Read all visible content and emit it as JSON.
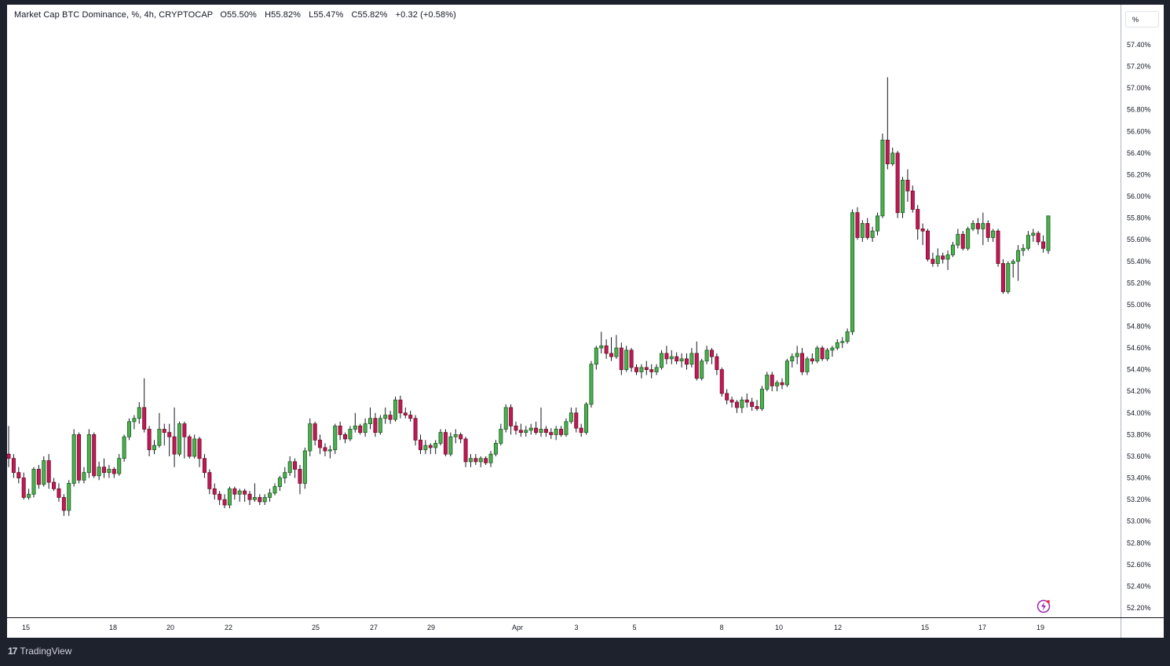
{
  "legend": {
    "symbol": "Market Cap BTC Dominance, %, 4h, CRYPTOCAP",
    "open": "O55.50%",
    "high": "H55.82%",
    "low": "L55.47%",
    "close": "C55.82%",
    "change": "+0.32 (+0.58%)"
  },
  "price_axis_unit": "%",
  "brand": {
    "name": "TradingView",
    "logo_text": "17"
  },
  "colors": {
    "up": "#4caf50",
    "down": "#c2185b",
    "up_fill": "#2e7d32",
    "down_fill": "#8b1a2b",
    "wick": "#131722"
  },
  "chart_data": {
    "type": "candlestick",
    "title": "Market Cap BTC Dominance, %, 4h, CRYPTOCAP",
    "ylabel": "%",
    "ylim": [
      52.1,
      57.7
    ],
    "yticks": [
      "52.20%",
      "52.40%",
      "52.60%",
      "52.80%",
      "53.00%",
      "53.20%",
      "53.40%",
      "53.60%",
      "53.80%",
      "54.00%",
      "54.20%",
      "54.40%",
      "54.60%",
      "54.80%",
      "55.00%",
      "55.20%",
      "55.40%",
      "55.60%",
      "55.80%",
      "56.00%",
      "56.20%",
      "56.40%",
      "56.60%",
      "56.80%",
      "57.00%",
      "57.20%",
      "57.40%"
    ],
    "xticks": [
      "15",
      "18",
      "20",
      "22",
      "25",
      "27",
      "29",
      "Apr",
      "3",
      "5",
      "8",
      "10",
      "12",
      "15",
      "17",
      "19"
    ],
    "grid": false,
    "candles": [
      [
        53.62,
        53.88,
        53.5,
        53.58
      ],
      [
        53.58,
        53.62,
        53.4,
        53.45
      ],
      [
        53.45,
        53.5,
        53.35,
        53.4
      ],
      [
        53.4,
        53.45,
        53.2,
        53.22
      ],
      [
        53.22,
        53.3,
        53.2,
        53.25
      ],
      [
        53.25,
        53.5,
        53.22,
        53.48
      ],
      [
        53.48,
        53.52,
        53.3,
        53.34
      ],
      [
        53.34,
        53.6,
        53.32,
        53.56
      ],
      [
        53.56,
        53.62,
        53.3,
        53.36
      ],
      [
        53.36,
        53.4,
        53.28,
        53.3
      ],
      [
        53.3,
        53.35,
        53.18,
        53.22
      ],
      [
        53.22,
        53.25,
        53.05,
        53.1
      ],
      [
        53.1,
        53.38,
        53.05,
        53.35
      ],
      [
        53.35,
        53.85,
        53.32,
        53.8
      ],
      [
        53.8,
        53.82,
        53.35,
        53.38
      ],
      [
        53.38,
        53.5,
        53.35,
        53.45
      ],
      [
        53.45,
        53.85,
        53.4,
        53.8
      ],
      [
        53.8,
        53.82,
        53.4,
        53.42
      ],
      [
        53.42,
        53.55,
        53.38,
        53.5
      ],
      [
        53.5,
        53.58,
        53.4,
        53.45
      ],
      [
        53.45,
        53.52,
        53.4,
        53.48
      ],
      [
        53.48,
        53.5,
        53.4,
        53.44
      ],
      [
        53.44,
        53.62,
        53.42,
        53.58
      ],
      [
        53.58,
        53.8,
        53.55,
        53.78
      ],
      [
        53.78,
        53.95,
        53.75,
        53.92
      ],
      [
        53.92,
        53.98,
        53.85,
        53.95
      ],
      [
        53.95,
        54.1,
        53.9,
        54.05
      ],
      [
        54.05,
        54.32,
        53.82,
        53.85
      ],
      [
        53.85,
        53.88,
        53.6,
        53.66
      ],
      [
        53.66,
        53.75,
        53.62,
        53.7
      ],
      [
        53.7,
        54.0,
        53.68,
        53.85
      ],
      [
        53.85,
        53.9,
        53.7,
        53.82
      ],
      [
        53.82,
        53.9,
        53.6,
        53.78
      ],
      [
        53.78,
        54.05,
        53.5,
        53.62
      ],
      [
        53.62,
        53.92,
        53.6,
        53.9
      ],
      [
        53.9,
        53.92,
        53.58,
        53.78
      ],
      [
        53.78,
        53.8,
        53.58,
        53.6
      ],
      [
        53.6,
        53.8,
        53.58,
        53.76
      ],
      [
        53.76,
        53.78,
        53.5,
        53.58
      ],
      [
        53.58,
        53.62,
        53.4,
        53.45
      ],
      [
        53.45,
        53.48,
        53.25,
        53.3
      ],
      [
        53.3,
        53.35,
        53.2,
        53.25
      ],
      [
        53.25,
        53.28,
        53.15,
        53.2
      ],
      [
        53.2,
        53.25,
        53.12,
        53.15
      ],
      [
        53.15,
        53.32,
        53.12,
        53.3
      ],
      [
        53.3,
        53.32,
        53.2,
        53.25
      ],
      [
        53.25,
        53.3,
        53.18,
        53.28
      ],
      [
        53.28,
        53.3,
        53.18,
        53.25
      ],
      [
        53.25,
        53.28,
        53.15,
        53.2
      ],
      [
        53.2,
        53.35,
        53.18,
        53.22
      ],
      [
        53.22,
        53.25,
        53.15,
        53.18
      ],
      [
        53.18,
        53.25,
        53.15,
        53.22
      ],
      [
        53.22,
        53.3,
        53.18,
        53.26
      ],
      [
        53.26,
        53.35,
        53.24,
        53.32
      ],
      [
        53.32,
        53.42,
        53.28,
        53.4
      ],
      [
        53.4,
        53.5,
        53.35,
        53.45
      ],
      [
        53.45,
        53.6,
        53.42,
        53.55
      ],
      [
        53.55,
        53.58,
        53.4,
        53.48
      ],
      [
        53.48,
        53.52,
        53.25,
        53.35
      ],
      [
        53.35,
        53.68,
        53.3,
        53.65
      ],
      [
        53.65,
        53.95,
        53.6,
        53.9
      ],
      [
        53.9,
        53.92,
        53.7,
        53.75
      ],
      [
        53.75,
        53.8,
        53.62,
        53.68
      ],
      [
        53.68,
        53.72,
        53.6,
        53.65
      ],
      [
        53.65,
        53.7,
        53.58,
        53.66
      ],
      [
        53.66,
        53.9,
        53.62,
        53.88
      ],
      [
        53.88,
        53.92,
        53.75,
        53.8
      ],
      [
        53.8,
        53.82,
        53.72,
        53.76
      ],
      [
        53.76,
        53.88,
        53.74,
        53.85
      ],
      [
        53.85,
        54.0,
        53.82,
        53.88
      ],
      [
        53.88,
        53.9,
        53.8,
        53.82
      ],
      [
        53.82,
        53.95,
        53.78,
        53.9
      ],
      [
        53.9,
        54.05,
        53.85,
        53.95
      ],
      [
        53.95,
        54.0,
        53.78,
        53.82
      ],
      [
        53.82,
        53.98,
        53.8,
        53.95
      ],
      [
        53.95,
        54.05,
        53.9,
        53.98
      ],
      [
        53.98,
        54.02,
        53.9,
        53.94
      ],
      [
        53.94,
        54.15,
        53.92,
        54.12
      ],
      [
        54.12,
        54.16,
        53.95,
        54.0
      ],
      [
        54.0,
        54.05,
        53.95,
        53.98
      ],
      [
        53.98,
        54.02,
        53.92,
        53.95
      ],
      [
        53.95,
        53.98,
        53.7,
        53.75
      ],
      [
        53.75,
        53.8,
        53.62,
        53.66
      ],
      [
        53.66,
        53.75,
        53.62,
        53.7
      ],
      [
        53.7,
        53.72,
        53.62,
        53.68
      ],
      [
        53.68,
        53.75,
        53.62,
        53.72
      ],
      [
        53.72,
        53.85,
        53.7,
        53.82
      ],
      [
        53.82,
        53.85,
        53.6,
        53.62
      ],
      [
        53.62,
        53.82,
        53.6,
        53.78
      ],
      [
        53.78,
        53.85,
        53.72,
        53.8
      ],
      [
        53.8,
        53.82,
        53.72,
        53.76
      ],
      [
        53.76,
        53.78,
        53.5,
        53.55
      ],
      [
        53.55,
        53.62,
        53.5,
        53.58
      ],
      [
        53.58,
        53.62,
        53.52,
        53.55
      ],
      [
        53.55,
        53.6,
        53.5,
        53.58
      ],
      [
        53.58,
        53.6,
        53.52,
        53.54
      ],
      [
        53.54,
        53.65,
        53.5,
        53.62
      ],
      [
        53.62,
        53.75,
        53.6,
        53.72
      ],
      [
        53.72,
        53.9,
        53.7,
        53.85
      ],
      [
        53.85,
        54.08,
        53.82,
        54.05
      ],
      [
        54.05,
        54.08,
        53.8,
        53.88
      ],
      [
        53.88,
        53.92,
        53.8,
        53.84
      ],
      [
        53.84,
        53.9,
        53.78,
        53.82
      ],
      [
        53.82,
        53.88,
        53.78,
        53.84
      ],
      [
        53.84,
        53.9,
        53.8,
        53.86
      ],
      [
        53.86,
        53.92,
        53.8,
        53.82
      ],
      [
        53.82,
        54.05,
        53.78,
        53.85
      ],
      [
        53.85,
        53.88,
        53.78,
        53.82
      ],
      [
        53.82,
        53.86,
        53.76,
        53.8
      ],
      [
        53.8,
        53.88,
        53.75,
        53.85
      ],
      [
        53.85,
        53.88,
        53.78,
        53.8
      ],
      [
        53.8,
        53.95,
        53.78,
        53.92
      ],
      [
        53.92,
        54.05,
        53.9,
        54.0
      ],
      [
        54.0,
        54.05,
        53.82,
        53.86
      ],
      [
        53.86,
        53.9,
        53.78,
        53.82
      ],
      [
        53.82,
        54.1,
        53.8,
        54.08
      ],
      [
        54.08,
        54.48,
        54.05,
        54.45
      ],
      [
        54.45,
        54.62,
        54.4,
        54.6
      ],
      [
        54.6,
        54.75,
        54.55,
        54.62
      ],
      [
        54.62,
        54.68,
        54.5,
        54.55
      ],
      [
        54.55,
        54.7,
        54.48,
        54.52
      ],
      [
        54.52,
        54.72,
        54.5,
        54.6
      ],
      [
        54.6,
        54.65,
        54.35,
        54.4
      ],
      [
        54.4,
        54.62,
        54.38,
        54.58
      ],
      [
        54.58,
        54.6,
        54.38,
        54.42
      ],
      [
        54.42,
        54.45,
        54.35,
        54.38
      ],
      [
        54.38,
        54.45,
        54.32,
        54.42
      ],
      [
        54.42,
        54.48,
        54.35,
        54.4
      ],
      [
        54.4,
        54.45,
        54.32,
        54.38
      ],
      [
        54.38,
        54.45,
        54.35,
        54.42
      ],
      [
        54.42,
        54.58,
        54.4,
        54.55
      ],
      [
        54.55,
        54.62,
        54.45,
        54.5
      ],
      [
        54.5,
        54.58,
        54.45,
        54.52
      ],
      [
        54.52,
        54.56,
        54.45,
        54.48
      ],
      [
        54.48,
        54.55,
        54.42,
        54.5
      ],
      [
        54.5,
        54.55,
        54.4,
        54.45
      ],
      [
        54.45,
        54.6,
        54.42,
        54.55
      ],
      [
        54.55,
        54.66,
        54.3,
        54.32
      ],
      [
        54.32,
        54.5,
        54.3,
        54.48
      ],
      [
        54.48,
        54.62,
        54.45,
        54.58
      ],
      [
        54.58,
        54.6,
        54.45,
        54.52
      ],
      [
        54.52,
        54.55,
        54.35,
        54.4
      ],
      [
        54.4,
        54.42,
        54.15,
        54.18
      ],
      [
        54.18,
        54.22,
        54.08,
        54.12
      ],
      [
        54.12,
        54.15,
        54.05,
        54.1
      ],
      [
        54.1,
        54.12,
        54.0,
        54.05
      ],
      [
        54.05,
        54.15,
        54.0,
        54.12
      ],
      [
        54.12,
        54.18,
        54.05,
        54.1
      ],
      [
        54.1,
        54.14,
        54.02,
        54.06
      ],
      [
        54.06,
        54.12,
        54.02,
        54.04
      ],
      [
        54.04,
        54.25,
        54.02,
        54.22
      ],
      [
        54.22,
        54.38,
        54.2,
        54.35
      ],
      [
        54.35,
        54.38,
        54.2,
        54.25
      ],
      [
        54.25,
        54.3,
        54.2,
        54.28
      ],
      [
        54.28,
        54.32,
        54.22,
        54.26
      ],
      [
        54.26,
        54.5,
        54.24,
        54.48
      ],
      [
        54.48,
        54.55,
        54.42,
        54.52
      ],
      [
        54.52,
        54.62,
        54.45,
        54.55
      ],
      [
        54.55,
        54.6,
        54.35,
        54.38
      ],
      [
        54.38,
        54.52,
        54.35,
        54.5
      ],
      [
        54.5,
        54.55,
        54.45,
        54.48
      ],
      [
        54.48,
        54.62,
        54.46,
        54.6
      ],
      [
        54.6,
        54.62,
        54.48,
        54.5
      ],
      [
        54.5,
        54.6,
        54.48,
        54.58
      ],
      [
        54.58,
        54.62,
        54.52,
        54.6
      ],
      [
        54.6,
        54.68,
        54.58,
        54.65
      ],
      [
        54.65,
        54.7,
        54.6,
        54.66
      ],
      [
        54.66,
        54.78,
        54.64,
        54.75
      ],
      [
        54.75,
        55.88,
        54.72,
        55.85
      ],
      [
        55.85,
        55.9,
        55.6,
        55.62
      ],
      [
        55.62,
        55.78,
        55.58,
        55.75
      ],
      [
        55.75,
        55.8,
        55.6,
        55.62
      ],
      [
        55.62,
        55.72,
        55.58,
        55.68
      ],
      [
        55.68,
        55.85,
        55.64,
        55.82
      ],
      [
        55.82,
        56.58,
        55.8,
        56.52
      ],
      [
        56.52,
        57.1,
        56.25,
        56.3
      ],
      [
        56.3,
        56.45,
        56.28,
        56.4
      ],
      [
        56.4,
        56.42,
        55.8,
        55.85
      ],
      [
        55.85,
        56.18,
        55.8,
        56.15
      ],
      [
        56.15,
        56.25,
        55.95,
        56.05
      ],
      [
        56.05,
        56.1,
        55.85,
        55.88
      ],
      [
        55.88,
        55.92,
        55.6,
        55.7
      ],
      [
        55.7,
        55.75,
        55.55,
        55.68
      ],
      [
        55.68,
        55.7,
        55.4,
        55.42
      ],
      [
        55.42,
        55.48,
        55.35,
        55.38
      ],
      [
        55.38,
        55.52,
        55.35,
        55.45
      ],
      [
        55.45,
        55.48,
        55.38,
        55.42
      ],
      [
        55.42,
        55.5,
        55.32,
        55.46
      ],
      [
        55.46,
        55.58,
        55.44,
        55.55
      ],
      [
        55.55,
        55.7,
        55.52,
        55.65
      ],
      [
        55.65,
        55.68,
        55.5,
        55.52
      ],
      [
        55.52,
        55.72,
        55.5,
        55.7
      ],
      [
        55.7,
        55.78,
        55.68,
        55.75
      ],
      [
        55.75,
        55.8,
        55.65,
        55.7
      ],
      [
        55.7,
        55.85,
        55.55,
        55.75
      ],
      [
        55.75,
        55.78,
        55.58,
        55.62
      ],
      [
        55.62,
        55.7,
        55.58,
        55.68
      ],
      [
        55.68,
        55.7,
        55.35,
        55.38
      ],
      [
        55.38,
        55.42,
        55.1,
        55.12
      ],
      [
        55.12,
        55.4,
        55.1,
        55.38
      ],
      [
        55.38,
        55.42,
        55.25,
        55.4
      ],
      [
        55.4,
        55.55,
        55.22,
        55.5
      ],
      [
        55.5,
        55.56,
        55.45,
        55.52
      ],
      [
        55.52,
        55.68,
        55.5,
        55.64
      ],
      [
        55.64,
        55.7,
        55.58,
        55.66
      ],
      [
        55.66,
        55.68,
        55.55,
        55.58
      ],
      [
        55.58,
        55.64,
        55.48,
        55.52
      ],
      [
        55.5,
        55.82,
        55.47,
        55.82
      ]
    ]
  }
}
